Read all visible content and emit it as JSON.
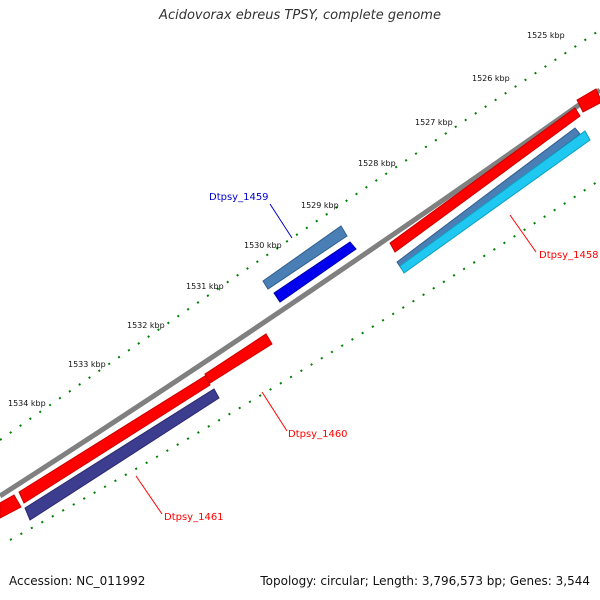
{
  "title": "Acidovorax ebreus TPSY, complete genome",
  "accession_text": "Accession: NC_011992",
  "topology_text": "Topology: circular; Length: 3,796,573 bp; Genes: 3,544",
  "scale_labels": [
    "1525 kbp",
    "1526 kbp",
    "1527 kbp",
    "1528 kbp",
    "1529 kbp",
    "1530 kbp",
    "1531 kbp",
    "1532 kbp",
    "1533 kbp",
    "1534 kbp"
  ],
  "genes": [
    {
      "label": "Dtpsy_1458",
      "color": "#ff0000"
    },
    {
      "label": "Dtpsy_1459",
      "color": "#0000cc"
    },
    {
      "label": "Dtpsy_1460",
      "color": "#ff0000"
    },
    {
      "label": "Dtpsy_1461",
      "color": "#ff0000"
    }
  ],
  "colors": {
    "backbone": "#808080",
    "tick": "#008000",
    "cds_red": "#ff0000",
    "cds_blue": "#0000ee",
    "gene_steelblue": "#4a7fb5",
    "gene_lightblue": "#1ec8f0",
    "gene_purple": "#3d3d8f"
  }
}
